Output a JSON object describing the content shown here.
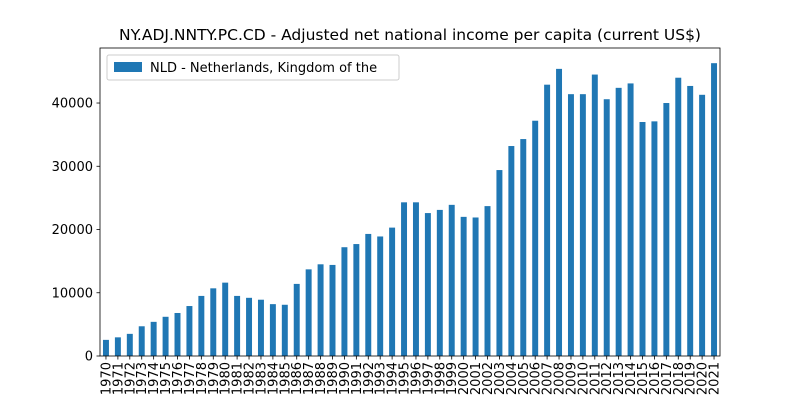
{
  "chart_data": {
    "type": "bar",
    "title": "NY.ADJ.NNTY.PC.CD - Adjusted net national income per capita (current US$)",
    "xlabel": "",
    "ylabel": "",
    "categories": [
      "1970",
      "1971",
      "1972",
      "1973",
      "1974",
      "1975",
      "1976",
      "1977",
      "1978",
      "1979",
      "1980",
      "1981",
      "1982",
      "1983",
      "1984",
      "1985",
      "1986",
      "1987",
      "1988",
      "1989",
      "1990",
      "1991",
      "1992",
      "1993",
      "1994",
      "1995",
      "1996",
      "1997",
      "1998",
      "1999",
      "2000",
      "2001",
      "2002",
      "2003",
      "2004",
      "2005",
      "2006",
      "2007",
      "2008",
      "2009",
      "2010",
      "2011",
      "2012",
      "2013",
      "2014",
      "2015",
      "2016",
      "2017",
      "2018",
      "2019",
      "2020",
      "2021"
    ],
    "series": [
      {
        "name": "NLD - Netherlands, Kingdom of the",
        "color": "#1f77b4",
        "values": [
          2550,
          2950,
          3500,
          4700,
          5400,
          6200,
          6800,
          7900,
          9500,
          10700,
          11600,
          9500,
          9200,
          8900,
          8200,
          8100,
          11400,
          13700,
          14500,
          14400,
          17200,
          17700,
          19300,
          18900,
          20300,
          24300,
          24300,
          22600,
          23100,
          23900,
          22000,
          21900,
          23700,
          29400,
          33200,
          34300,
          37200,
          42900,
          45400,
          41400,
          41400,
          44500,
          40600,
          42400,
          43100,
          37000,
          37100,
          40000,
          44000,
          42700,
          41300,
          46300
        ]
      }
    ],
    "ylim": [
      0,
      48700
    ],
    "yticks": [
      0,
      10000,
      20000,
      30000,
      40000
    ],
    "legend_position": "upper-left",
    "grid": false
  }
}
